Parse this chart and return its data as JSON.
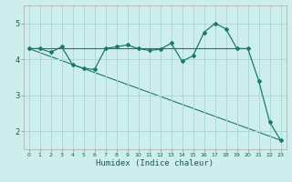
{
  "xlabel": "Humidex (Indice chaleur)",
  "bg_color": "#ceeeed",
  "grid_color": "#aed8d5",
  "line_color": "#1a7a6e",
  "xlim": [
    -0.5,
    23.5
  ],
  "ylim": [
    1.5,
    5.5
  ],
  "yticks": [
    2,
    3,
    4,
    5
  ],
  "xticks": [
    0,
    1,
    2,
    3,
    4,
    5,
    6,
    7,
    8,
    9,
    10,
    11,
    12,
    13,
    14,
    15,
    16,
    17,
    18,
    19,
    20,
    21,
    22,
    23
  ],
  "series": [
    {
      "x": [
        0,
        1,
        2,
        3,
        4,
        5,
        6,
        7,
        8,
        9,
        10,
        11,
        12,
        13,
        14,
        15,
        16,
        17,
        18,
        19,
        20,
        21,
        22,
        23
      ],
      "y": [
        4.3,
        4.3,
        4.2,
        4.35,
        3.85,
        3.75,
        3.72,
        4.3,
        4.35,
        4.4,
        4.3,
        4.25,
        4.28,
        4.45,
        3.95,
        4.1,
        4.75,
        5.0,
        4.85,
        4.3,
        4.3,
        3.4,
        2.25,
        1.75
      ]
    },
    {
      "x": [
        0,
        20
      ],
      "y": [
        4.3,
        4.3
      ]
    },
    {
      "x": [
        0,
        23
      ],
      "y": [
        4.3,
        1.75
      ]
    }
  ]
}
